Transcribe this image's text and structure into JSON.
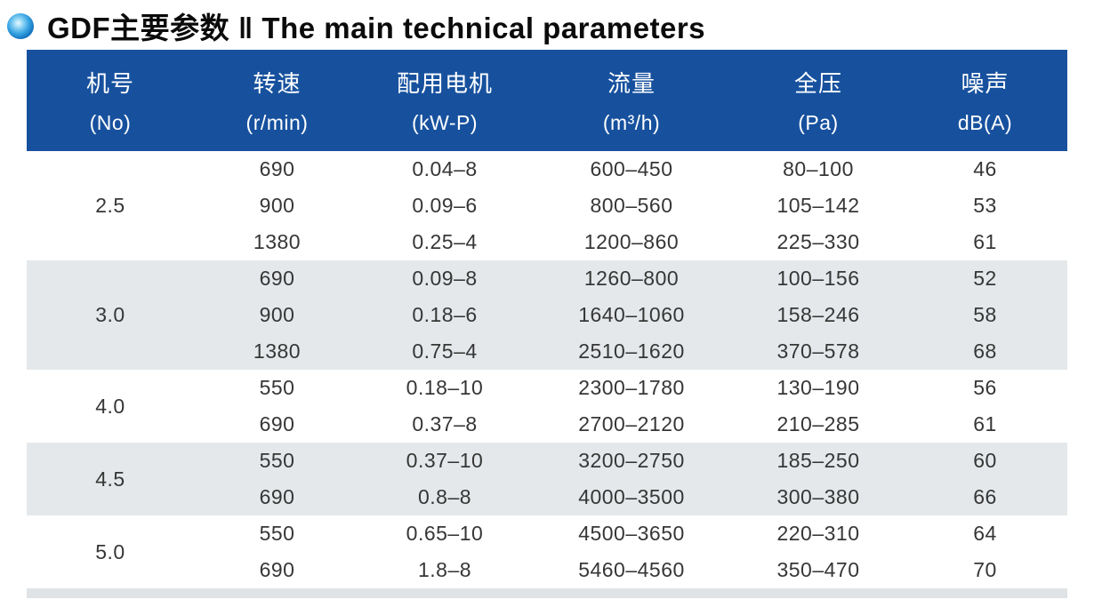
{
  "title": {
    "text": "GDF主要参数 ‖ The main technical parameters",
    "bullet_icon": "blue-sphere-bullet",
    "accent_color": "#1e90d6"
  },
  "table": {
    "colors": {
      "header_bg": "#17519e",
      "header_text": "#ffffff",
      "band_gray": "#e4e8ea",
      "band_white": "#ffffff",
      "body_text": "#363636"
    },
    "columns": [
      {
        "zh": "机号",
        "unit": "(No)"
      },
      {
        "zh": "转速",
        "unit": "(r/min)"
      },
      {
        "zh": "配用电机",
        "unit": "(kW-P)"
      },
      {
        "zh": "流量",
        "unit": "(m³/h)"
      },
      {
        "zh": "全压",
        "unit": "(Pa)"
      },
      {
        "zh": "噪声",
        "unit": "dB(A)"
      }
    ],
    "groups": [
      {
        "no": "2.5",
        "rows": [
          {
            "speed": "690",
            "motor": "0.04–8",
            "flow": "600–450",
            "pressure": "80–100",
            "noise": "46"
          },
          {
            "speed": "900",
            "motor": "0.09–6",
            "flow": "800–560",
            "pressure": "105–142",
            "noise": "53"
          },
          {
            "speed": "1380",
            "motor": "0.25–4",
            "flow": "1200–860",
            "pressure": "225–330",
            "noise": "61"
          }
        ]
      },
      {
        "no": "3.0",
        "rows": [
          {
            "speed": "690",
            "motor": "0.09–8",
            "flow": "1260–800",
            "pressure": "100–156",
            "noise": "52"
          },
          {
            "speed": "900",
            "motor": "0.18–6",
            "flow": "1640–1060",
            "pressure": "158–246",
            "noise": "58"
          },
          {
            "speed": "1380",
            "motor": "0.75–4",
            "flow": "2510–1620",
            "pressure": "370–578",
            "noise": "68"
          }
        ]
      },
      {
        "no": "4.0",
        "rows": [
          {
            "speed": "550",
            "motor": "0.18–10",
            "flow": "2300–1780",
            "pressure": "130–190",
            "noise": "56"
          },
          {
            "speed": "690",
            "motor": "0.37–8",
            "flow": "2700–2120",
            "pressure": "210–285",
            "noise": "61"
          }
        ]
      },
      {
        "no": "4.5",
        "rows": [
          {
            "speed": "550",
            "motor": "0.37–10",
            "flow": "3200–2750",
            "pressure": "185–250",
            "noise": "60"
          },
          {
            "speed": "690",
            "motor": "0.8–8",
            "flow": "4000–3500",
            "pressure": "300–380",
            "noise": "66"
          }
        ]
      },
      {
        "no": "5.0",
        "rows": [
          {
            "speed": "550",
            "motor": "0.65–10",
            "flow": "4500–3650",
            "pressure": "220–310",
            "noise": "64"
          },
          {
            "speed": "690",
            "motor": "1.8–8",
            "flow": "5460–4560",
            "pressure": "350–470",
            "noise": "70"
          }
        ]
      }
    ]
  }
}
